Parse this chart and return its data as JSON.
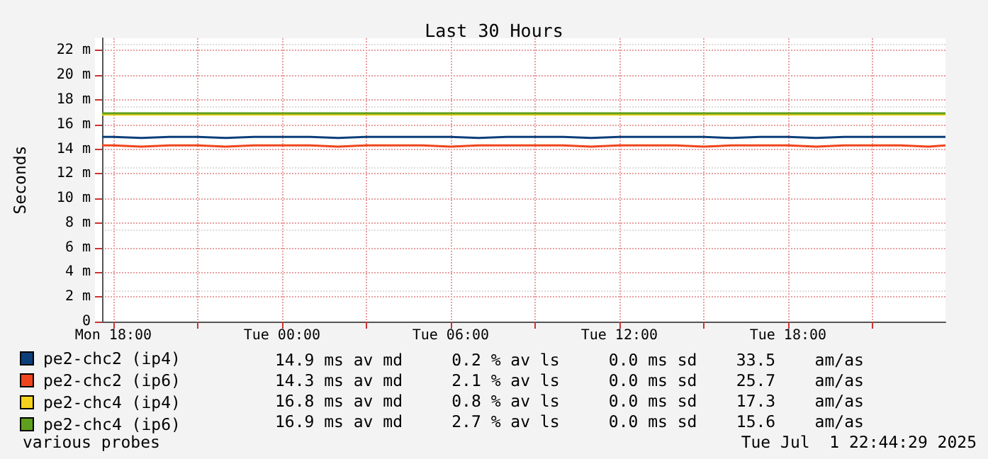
{
  "chart_data": {
    "type": "line",
    "title": "Last 30 Hours",
    "ylabel": "Seconds",
    "x": [
      "2025-06-30T17:36",
      "2025-06-30T18:00",
      "2025-06-30T19:00",
      "2025-06-30T20:00",
      "2025-06-30T21:00",
      "2025-06-30T22:00",
      "2025-06-30T23:00",
      "2025-07-01T00:00",
      "2025-07-01T01:00",
      "2025-07-01T02:00",
      "2025-07-01T03:00",
      "2025-07-01T04:00",
      "2025-07-01T05:00",
      "2025-07-01T06:00",
      "2025-07-01T07:00",
      "2025-07-01T08:00",
      "2025-07-01T09:00",
      "2025-07-01T10:00",
      "2025-07-01T11:00",
      "2025-07-01T12:00",
      "2025-07-01T13:00",
      "2025-07-01T14:00",
      "2025-07-01T15:00",
      "2025-07-01T16:00",
      "2025-07-01T17:00",
      "2025-07-01T18:00",
      "2025-07-01T19:00",
      "2025-07-01T20:00",
      "2025-07-01T21:00",
      "2025-07-01T22:00",
      "2025-07-01T23:00",
      "2025-07-01T23:36"
    ],
    "series": [
      {
        "name": "pe2-chc2 (ip4)",
        "color": "#0b3f7a",
        "values": [
          15.0,
          15.0,
          14.9,
          15.0,
          15.0,
          14.9,
          15.0,
          15.0,
          15.0,
          14.9,
          15.0,
          15.0,
          15.0,
          15.0,
          14.9,
          15.0,
          15.0,
          15.0,
          14.9,
          15.0,
          15.0,
          15.0,
          15.0,
          14.9,
          15.0,
          15.0,
          14.9,
          15.0,
          15.0,
          15.0,
          15.0,
          15.0
        ]
      },
      {
        "name": "pe2-chc2 (ip6)",
        "color": "#f0451c",
        "values": [
          14.3,
          14.3,
          14.2,
          14.3,
          14.3,
          14.2,
          14.3,
          14.3,
          14.3,
          14.2,
          14.3,
          14.3,
          14.3,
          14.2,
          14.3,
          14.3,
          14.3,
          14.3,
          14.2,
          14.3,
          14.3,
          14.3,
          14.2,
          14.3,
          14.3,
          14.3,
          14.2,
          14.3,
          14.3,
          14.3,
          14.2,
          14.3
        ]
      },
      {
        "name": "pe2-chc4 (ip4)",
        "color": "#f5d21c",
        "values": [
          16.8,
          16.8,
          16.8,
          16.8,
          16.8,
          16.8,
          16.8,
          16.8,
          16.8,
          16.8,
          16.8,
          16.8,
          16.8,
          16.8,
          16.8,
          16.8,
          16.8,
          16.8,
          16.8,
          16.8,
          16.8,
          16.8,
          16.8,
          16.8,
          16.8,
          16.8,
          16.8,
          16.8,
          16.8,
          16.8,
          16.8,
          16.8
        ]
      },
      {
        "name": "pe2-chc4 (ip6)",
        "color": "#5fa01e",
        "values": [
          16.9,
          16.9,
          16.9,
          16.9,
          16.9,
          16.9,
          16.9,
          16.9,
          16.9,
          16.9,
          16.9,
          16.9,
          16.9,
          16.9,
          16.9,
          16.9,
          16.9,
          16.9,
          16.9,
          16.9,
          16.9,
          16.9,
          16.9,
          16.9,
          16.9,
          16.9,
          16.9,
          16.9,
          16.9,
          16.9,
          16.9,
          16.9
        ]
      }
    ],
    "xlim": [
      "2025-06-30T17:36",
      "2025-07-01T23:36"
    ],
    "xticks": [
      {
        "value": "2025-06-30T18:00",
        "label": "Mon 18:00"
      },
      {
        "value": "2025-06-30T21:00",
        "label": null
      },
      {
        "value": "2025-07-01T00:00",
        "label": "Tue 00:00"
      },
      {
        "value": "2025-07-01T03:00",
        "label": null
      },
      {
        "value": "2025-07-01T06:00",
        "label": "Tue 06:00"
      },
      {
        "value": "2025-07-01T09:00",
        "label": null
      },
      {
        "value": "2025-07-01T12:00",
        "label": "Tue 12:00"
      },
      {
        "value": "2025-07-01T15:00",
        "label": null
      },
      {
        "value": "2025-07-01T18:00",
        "label": "Tue 18:00"
      },
      {
        "value": "2025-07-01T21:00",
        "label": null
      }
    ],
    "ylim": [
      0,
      23
    ],
    "yticks": [
      0,
      {
        "value": 2,
        "label": "2 m"
      },
      {
        "value": 4,
        "label": "4 m"
      },
      {
        "value": 6,
        "label": "6 m"
      },
      {
        "value": 8,
        "label": "8 m"
      },
      {
        "value": 10,
        "label": "10 m"
      },
      {
        "value": 12,
        "label": "12 m"
      },
      {
        "value": 14,
        "label": "14 m"
      },
      {
        "value": 16,
        "label": "16 m"
      },
      {
        "value": 18,
        "label": "18 m"
      },
      {
        "value": 20,
        "label": "20 m"
      },
      {
        "value": 22,
        "label": "22 m"
      }
    ],
    "grid": true,
    "legend": "bottom left",
    "marker": "none",
    "line_style": "solid",
    "annotations": [
      "14.9 ms av md     0.2 % av ls     0.0 ms sd    33.5    am/as",
      "14.3 ms av md     2.1 % av ls     0.0 ms sd    25.7    am/as",
      "16.8 ms av md     0.8 % av ls     0.0 ms sd    17.3    am/as",
      "16.9 ms av md     2.7 % av ls     0.0 ms sd    15.6    am/as",
      "various probes",
      "Tue Jul  1 22:44:29 2025"
    ]
  }
}
